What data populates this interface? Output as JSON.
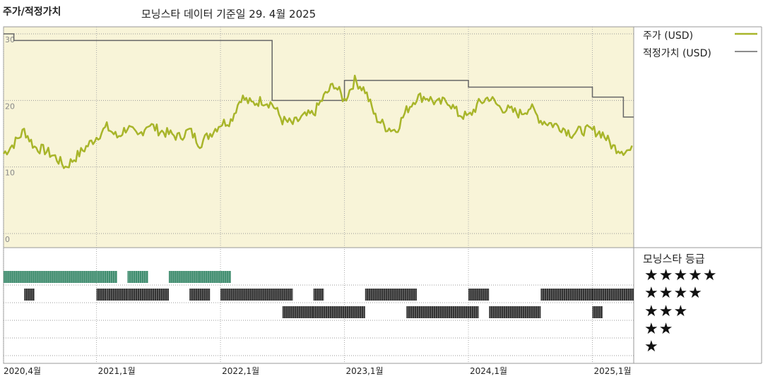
{
  "header": {
    "title": "주가/적정가치",
    "subtitle": "모닝스타 데이터 기준일 29. 4월 2025"
  },
  "legend": {
    "price_label": "주가 (USD)",
    "fair_value_label": "적정가치 (USD)",
    "rating_title": "모닝스타 등급"
  },
  "colors": {
    "price": "#a8b52a",
    "fair_value": "#666666",
    "plot_bg": "#f8f4d8",
    "five_star": "#3f8c6e",
    "bands": "#333333"
  },
  "ratings": {
    "stars": [
      "★★★★★",
      "★★★★",
      "★★★",
      "★★",
      "★"
    ],
    "periods": [
      {
        "stars": 5,
        "from": "2020-04",
        "to": "2021-01"
      },
      {
        "stars": 5,
        "from": "2021-01",
        "to": "2021-02"
      },
      {
        "stars": 5,
        "from": "2021-04",
        "to": "2021-05"
      },
      {
        "stars": 5,
        "from": "2021-08",
        "to": "2021-10"
      },
      {
        "stars": 5,
        "from": "2021-11",
        "to": "2022-01"
      },
      {
        "stars": 4,
        "from": "2020-06",
        "to": "2020-06"
      },
      {
        "stars": 4,
        "from": "2021-01",
        "to": "2021-01"
      },
      {
        "stars": 4,
        "from": "2021-02",
        "to": "2021-04"
      },
      {
        "stars": 4,
        "from": "2021-04",
        "to": "2021-07"
      },
      {
        "stars": 4,
        "from": "2021-10",
        "to": "2021-11"
      },
      {
        "stars": 4,
        "from": "2022-01",
        "to": "2022-07"
      },
      {
        "stars": 4,
        "from": "2022-10",
        "to": "2022-10"
      },
      {
        "stars": 4,
        "from": "2023-03",
        "to": "2023-07"
      },
      {
        "stars": 4,
        "from": "2024-01",
        "to": "2024-02"
      },
      {
        "stars": 4,
        "from": "2024-08",
        "to": "2025-01"
      },
      {
        "stars": 4,
        "from": "2025-01",
        "to": "2025-04"
      },
      {
        "stars": 3,
        "from": "2022-07",
        "to": "2022-09"
      },
      {
        "stars": 3,
        "from": "2022-10",
        "to": "2023-02"
      },
      {
        "stars": 3,
        "from": "2023-07",
        "to": "2024-01"
      },
      {
        "stars": 3,
        "from": "2024-03",
        "to": "2024-07"
      },
      {
        "stars": 3,
        "from": "2025-01",
        "to": "2025-01"
      }
    ]
  },
  "chart_data": {
    "type": "line",
    "title": "주가/적정가치",
    "ylim": [
      0,
      30
    ],
    "y_ticks": [
      0,
      10,
      20,
      30
    ],
    "x_ticks": [
      "2020,4월",
      "2021,1월",
      "2022,1월",
      "2023,1월",
      "2024,1월",
      "2025,1월"
    ],
    "series": [
      {
        "name": "주가 (USD)",
        "x": [
          "2020-04",
          "2020-05",
          "2020-06",
          "2020-07",
          "2020-08",
          "2020-09",
          "2020-10",
          "2020-11",
          "2020-12",
          "2021-01",
          "2021-02",
          "2021-03",
          "2021-04",
          "2021-05",
          "2021-06",
          "2021-07",
          "2021-08",
          "2021-09",
          "2021-10",
          "2021-11",
          "2021-12",
          "2022-01",
          "2022-02",
          "2022-03",
          "2022-04",
          "2022-05",
          "2022-06",
          "2022-07",
          "2022-08",
          "2022-09",
          "2022-10",
          "2022-11",
          "2022-12",
          "2023-01",
          "2023-02",
          "2023-03",
          "2023-04",
          "2023-05",
          "2023-06",
          "2023-07",
          "2023-08",
          "2023-09",
          "2023-10",
          "2023-11",
          "2023-12",
          "2024-01",
          "2024-02",
          "2024-03",
          "2024-04",
          "2024-05",
          "2024-06",
          "2024-07",
          "2024-08",
          "2024-09",
          "2024-10",
          "2024-11",
          "2024-12",
          "2025-01",
          "2025-02",
          "2025-03",
          "2025-04"
        ],
        "values": [
          12.0,
          13.5,
          15.5,
          13.0,
          12.5,
          11.5,
          10.0,
          11.5,
          13.0,
          14.5,
          16.0,
          14.5,
          16.0,
          14.5,
          16.5,
          15.5,
          15.0,
          14.5,
          15.5,
          13.5,
          15.0,
          16.5,
          17.0,
          20.5,
          19.5,
          20.0,
          19.5,
          17.0,
          16.5,
          17.5,
          18.0,
          20.5,
          22.5,
          20.0,
          23.0,
          21.5,
          17.5,
          16.0,
          15.5,
          18.5,
          20.5,
          20.5,
          19.5,
          20.0,
          18.0,
          17.5,
          19.5,
          20.5,
          19.0,
          18.5,
          18.0,
          19.0,
          17.0,
          16.5,
          16.0,
          15.0,
          15.5,
          15.5,
          15.0,
          13.0,
          12.5
        ]
      },
      {
        "name": "적정가치 (USD)",
        "x": [
          "2020-04",
          "2020-05",
          "2022-05",
          "2022-06",
          "2022-12",
          "2023-01",
          "2024-01",
          "2025-01",
          "2025-04"
        ],
        "values": [
          30.0,
          29.0,
          29.0,
          20.0,
          20.0,
          23.0,
          22.0,
          20.5,
          17.5
        ]
      }
    ]
  }
}
